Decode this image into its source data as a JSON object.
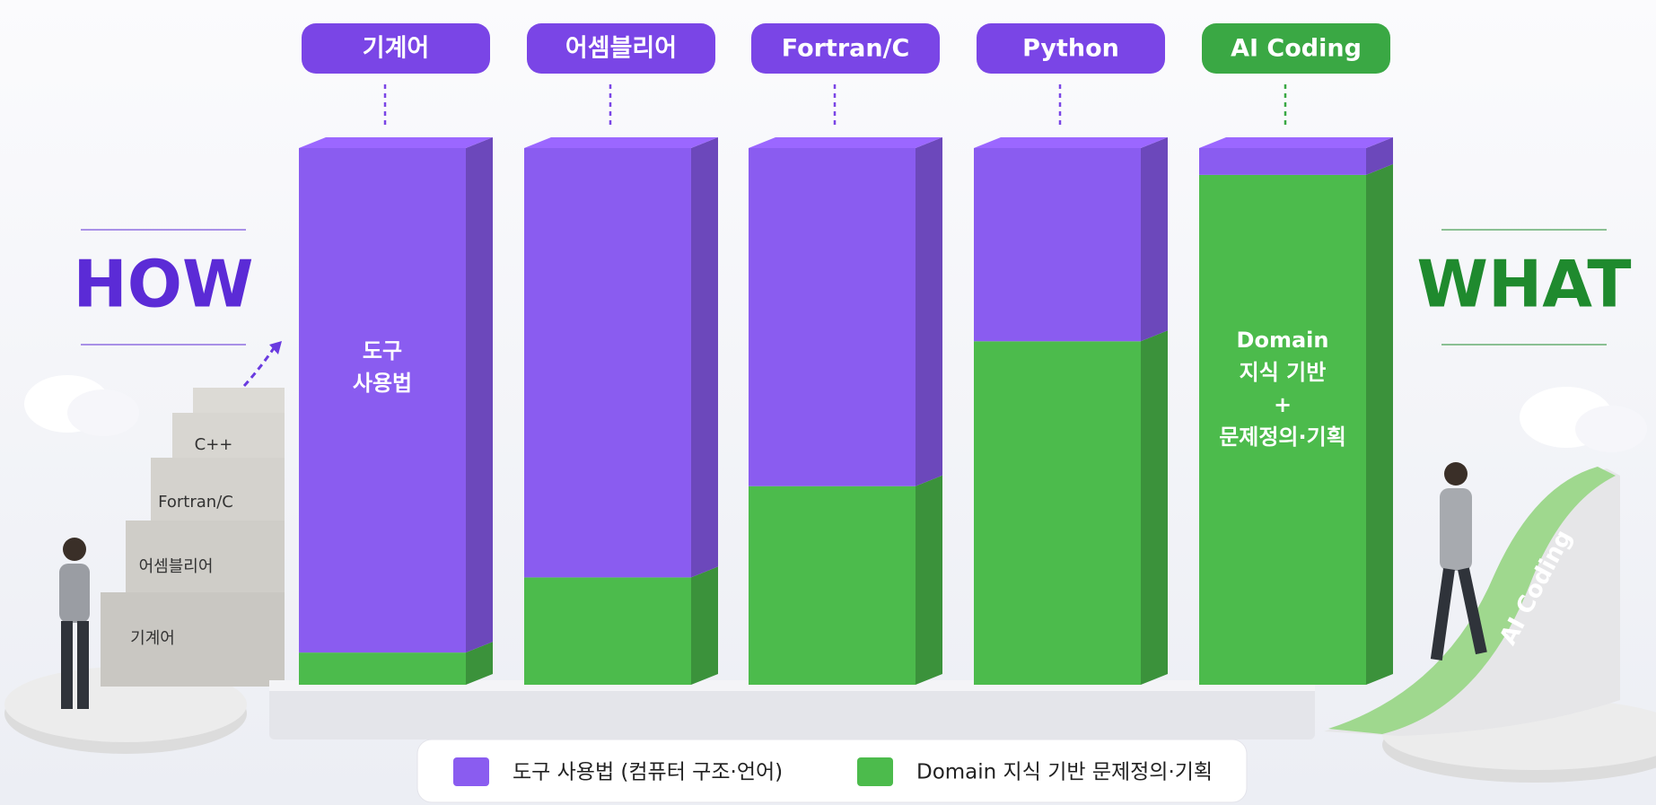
{
  "chart_data": {
    "type": "stacked-bar-3d",
    "categories": [
      "기계어",
      "어셈블리어",
      "Fortran/C",
      "Python",
      "AI Coding"
    ],
    "category_colors": [
      "#7a45e6",
      "#7a45e6",
      "#7a45e6",
      "#7a45e6",
      "#3aa844"
    ],
    "series": [
      {
        "name": "도구 사용법 (컴퓨터 구조·언어)",
        "color": "#8a5cf0",
        "values": [
          94,
          80,
          63,
          36,
          5
        ]
      },
      {
        "name": "Domain 지식 기반 문제정의·기획",
        "color": "#4cbb4c",
        "values": [
          6,
          20,
          37,
          64,
          95
        ]
      }
    ],
    "ylim": [
      0,
      100
    ],
    "left_label": "HOW",
    "left_color": "#5b2bd6",
    "right_label": "WHAT",
    "right_color": "#1f8a2e",
    "tool_note": [
      "도구",
      "사용법"
    ],
    "domain_note": [
      "Domain",
      "지식 기반",
      "+",
      "문제정의·기획"
    ],
    "stairs": [
      "기계어",
      "어셈블리어",
      "Fortran/C",
      "C++"
    ],
    "ramp_label": "AI Coding"
  }
}
